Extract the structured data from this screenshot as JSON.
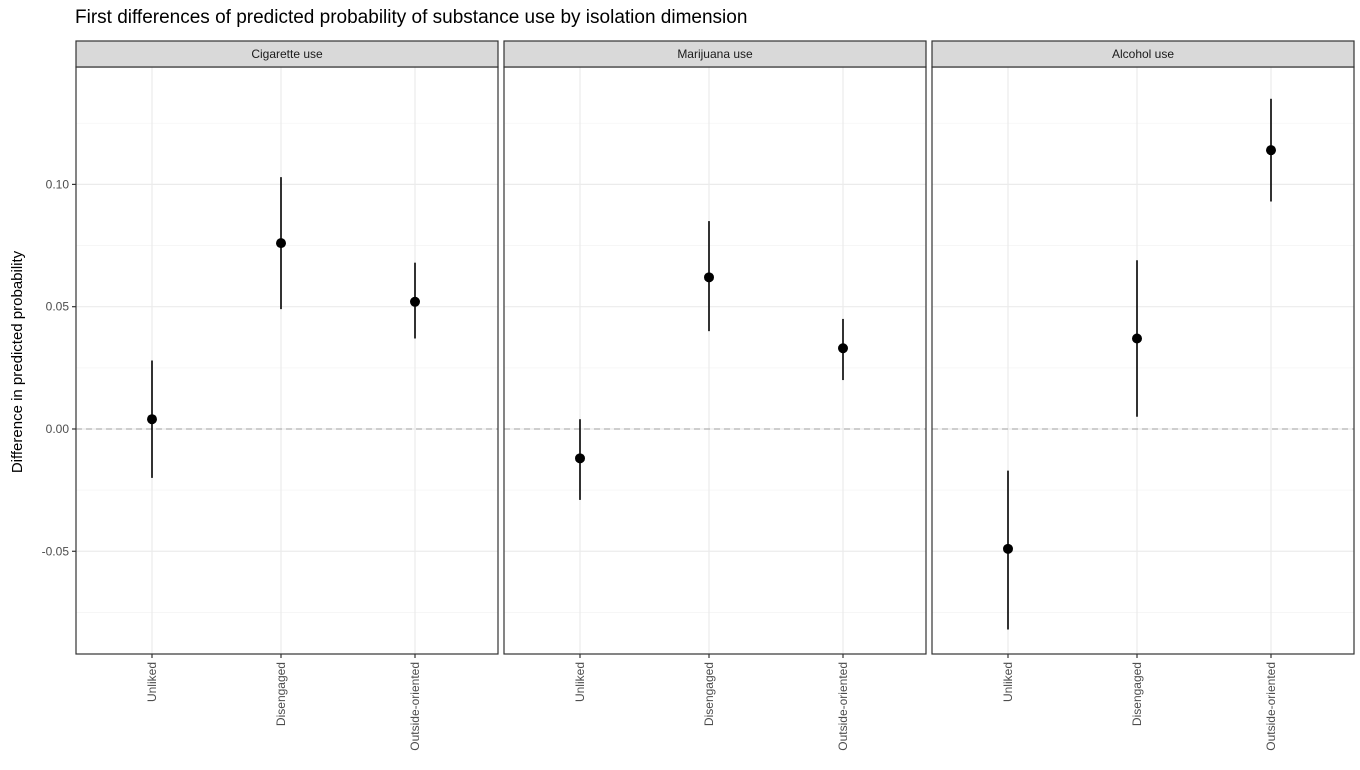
{
  "chart_data": {
    "type": "scatter",
    "title": "First differences of predicted probability of substance use by isolation dimension",
    "ylabel": "Difference in predicted probability",
    "xlabel": "",
    "categories": [
      "Unliked",
      "Disengaged",
      "Outside-oriented"
    ],
    "y_ticks": [
      -0.05,
      0.0,
      0.05,
      0.1
    ],
    "y_tick_labels": [
      "-0.05",
      "0.00",
      "0.05",
      "0.10"
    ],
    "ylim": [
      -0.092,
      0.148
    ],
    "reference_line": 0,
    "grid": true,
    "panels": [
      {
        "name": "Cigarette use",
        "estimates": [
          0.004,
          0.076,
          0.052
        ],
        "lower": [
          -0.02,
          0.049,
          0.037
        ],
        "upper": [
          0.028,
          0.103,
          0.068
        ]
      },
      {
        "name": "Marijuana use",
        "estimates": [
          -0.012,
          0.062,
          0.033
        ],
        "lower": [
          -0.029,
          0.04,
          0.02
        ],
        "upper": [
          0.004,
          0.085,
          0.045
        ]
      },
      {
        "name": "Alcohol use",
        "estimates": [
          -0.049,
          0.037,
          0.114
        ],
        "lower": [
          -0.082,
          0.005,
          0.093
        ],
        "upper": [
          -0.017,
          0.069,
          0.135
        ]
      }
    ]
  },
  "colors": {
    "point": "#000000",
    "strip_fill": "#d9d9d9",
    "panel_border": "#333333",
    "grid_major": "#ebebeb",
    "grid_minor": "#f5f5f5",
    "reference_line": "#b3b3b3"
  }
}
